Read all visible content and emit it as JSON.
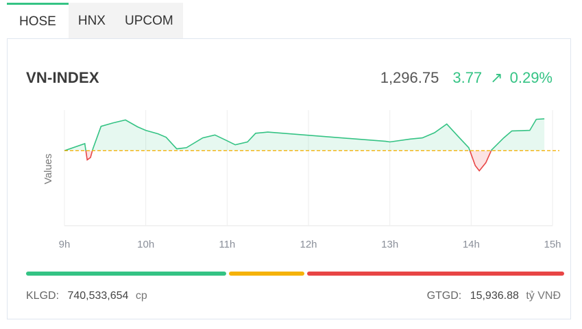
{
  "tabs": [
    {
      "label": "HOSE",
      "active": true
    },
    {
      "label": "HNX",
      "active": false
    },
    {
      "label": "UPCOM",
      "active": false
    }
  ],
  "index": {
    "name": "VN-INDEX",
    "value": "1,296.75",
    "change": "3.77",
    "change_pct": "0.29%",
    "arrow_icon": "arrow-up-right-icon"
  },
  "footer": {
    "volume_label": "KLGD:",
    "volume_value": "740,533,654",
    "volume_unit": "cp",
    "turnover_label": "GTGD:",
    "turnover_value": "15,936.88",
    "turnover_unit": "tỷ VNĐ"
  },
  "colors": {
    "up": "#34c384",
    "reference": "#f5b20a",
    "down": "#e84545"
  },
  "chart_data": {
    "type": "line",
    "title": "",
    "xlabel": "",
    "ylabel": "Values",
    "x_ticks": [
      "9h",
      "10h",
      "11h",
      "12h",
      "13h",
      "14h",
      "15h"
    ],
    "ylim": [
      1280,
      1300
    ],
    "reference": 1292.98,
    "grid": "vertical",
    "series": [
      {
        "points": [
          [
            9.0,
            1292.98
          ],
          [
            9.25,
            1294.2
          ],
          [
            9.28,
            1291.4
          ],
          [
            9.32,
            1291.8
          ],
          [
            9.35,
            1293.3
          ],
          [
            9.45,
            1297.2
          ],
          [
            9.6,
            1297.8
          ],
          [
            9.75,
            1298.3
          ],
          [
            9.9,
            1297.1
          ],
          [
            10.0,
            1296.5
          ],
          [
            10.15,
            1295.9
          ],
          [
            10.25,
            1295.3
          ],
          [
            10.38,
            1293.3
          ],
          [
            10.5,
            1293.5
          ],
          [
            10.7,
            1295.2
          ],
          [
            10.85,
            1295.7
          ],
          [
            11.0,
            1294.7
          ],
          [
            11.1,
            1294.0
          ],
          [
            11.25,
            1294.5
          ],
          [
            11.35,
            1296.0
          ],
          [
            11.5,
            1296.2
          ],
          [
            12.95,
            1294.6
          ],
          [
            13.0,
            1294.5
          ],
          [
            13.25,
            1295.0
          ],
          [
            13.4,
            1295.2
          ],
          [
            13.55,
            1296.1
          ],
          [
            13.7,
            1297.6
          ],
          [
            13.85,
            1295.3
          ],
          [
            13.97,
            1293.5
          ],
          [
            14.05,
            1290.4
          ],
          [
            14.1,
            1289.5
          ],
          [
            14.18,
            1290.9
          ],
          [
            14.25,
            1293.1
          ],
          [
            14.4,
            1295.2
          ],
          [
            14.5,
            1296.4
          ],
          [
            14.72,
            1296.5
          ],
          [
            14.8,
            1298.4
          ],
          [
            14.9,
            1298.5
          ]
        ]
      }
    ]
  }
}
